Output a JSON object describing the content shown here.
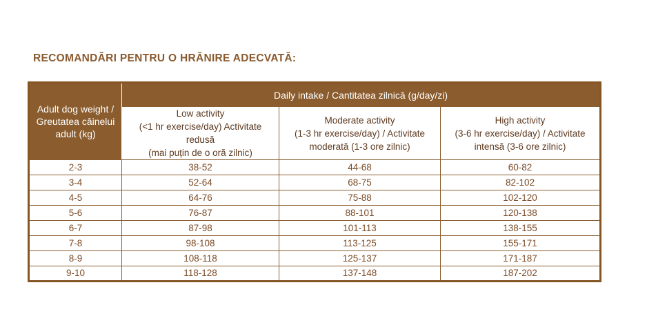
{
  "title": "RECOMANDĂRI PENTRU O HRĂNIRE ADECVATĂ:",
  "colors": {
    "header_background": "#8a5c2e",
    "header_text": "#ffffff",
    "title_text": "#8a5a2e",
    "subheader_text": "#5d3a20",
    "data_text": "#7b4b26",
    "border": "#855624"
  },
  "table": {
    "weight_header": "Adult dog weight /\nGreutatea câinelui\nadult (kg)",
    "daily_intake_header": "Daily intake / Cantitatea zilnică (g/day/zi)",
    "activity_headers": [
      "Low activity\n(<1 hr exercise/day) Activitate redusă\n(mai puțin de o oră zilnic)",
      "Moderate activity\n(1-3 hr exercise/day) / Activitate\nmoderată (1-3 ore zilnic)",
      "High activity\n(3-6 hr exercise/day) / Activitate\nintensă (3-6 ore zilnic)"
    ],
    "rows": [
      {
        "weight": "2-3",
        "low": "38-52",
        "moderate": "44-68",
        "high": "60-82"
      },
      {
        "weight": "3-4",
        "low": "52-64",
        "moderate": "68-75",
        "high": "82-102"
      },
      {
        "weight": "4-5",
        "low": "64-76",
        "moderate": "75-88",
        "high": "102-120"
      },
      {
        "weight": "5-6",
        "low": "76-87",
        "moderate": "88-101",
        "high": "120-138"
      },
      {
        "weight": "6-7",
        "low": "87-98",
        "moderate": "101-113",
        "high": "138-155"
      },
      {
        "weight": "7-8",
        "low": "98-108",
        "moderate": "113-125",
        "high": "155-171"
      },
      {
        "weight": "8-9",
        "low": "108-118",
        "moderate": "125-137",
        "high": "171-187"
      },
      {
        "weight": "9-10",
        "low": "118-128",
        "moderate": "137-148",
        "high": "187-202"
      }
    ]
  }
}
